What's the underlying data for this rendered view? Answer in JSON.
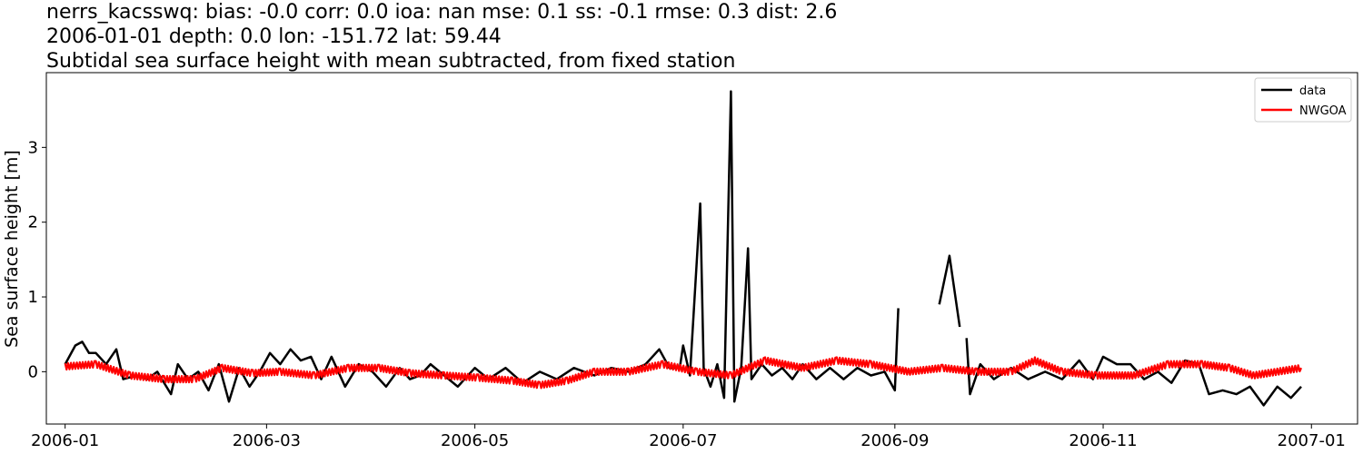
{
  "header": {
    "line1": "nerrs_kacsswq: bias: -0.0  corr: 0.0  ioa: nan  mse: 0.1  ss: -0.1  rmse: 0.3  dist: 2.6",
    "line2": "2006-01-01 depth: 0.0 lon: -151.72 lat: 59.44",
    "line3": "Subtidal sea surface height with mean subtracted, from fixed station"
  },
  "chart_data": {
    "type": "line",
    "xlabel": "",
    "ylabel": "Sea surface height [m]",
    "xlim": [
      "2006-01-01",
      "2006-12-31"
    ],
    "ylim": [
      -0.7,
      4.0
    ],
    "x_tick_labels": [
      "2006-01",
      "2006-03",
      "2006-05",
      "2006-07",
      "2006-09",
      "2006-11",
      "2007-01"
    ],
    "y_tick_labels": [
      "0",
      "1",
      "2",
      "3"
    ],
    "y_ticks": [
      0,
      1,
      2,
      3
    ],
    "grid": false,
    "legend_position": "upper-right",
    "series": [
      {
        "name": "data",
        "color": "#000000",
        "segments": [
          [
            [
              "2006-01-01",
              0.1
            ],
            [
              "2006-01-04",
              0.35
            ],
            [
              "2006-01-06",
              0.4
            ],
            [
              "2006-01-08",
              0.25
            ],
            [
              "2006-01-10",
              0.25
            ],
            [
              "2006-01-13",
              0.1
            ],
            [
              "2006-01-16",
              0.3
            ],
            [
              "2006-01-18",
              -0.1
            ],
            [
              "2006-01-22",
              -0.05
            ],
            [
              "2006-01-25",
              -0.1
            ],
            [
              "2006-01-28",
              0.0
            ],
            [
              "2006-02-01",
              -0.3
            ],
            [
              "2006-02-03",
              0.1
            ],
            [
              "2006-02-06",
              -0.1
            ],
            [
              "2006-02-09",
              0.0
            ],
            [
              "2006-02-12",
              -0.25
            ],
            [
              "2006-02-15",
              0.1
            ],
            [
              "2006-02-18",
              -0.4
            ],
            [
              "2006-02-21",
              0.05
            ],
            [
              "2006-02-24",
              -0.2
            ],
            [
              "2006-02-27",
              0.0
            ],
            [
              "2006-03-02",
              0.25
            ],
            [
              "2006-03-05",
              0.1
            ],
            [
              "2006-03-08",
              0.3
            ],
            [
              "2006-03-11",
              0.15
            ],
            [
              "2006-03-14",
              0.2
            ],
            [
              "2006-03-17",
              -0.1
            ],
            [
              "2006-03-20",
              0.2
            ],
            [
              "2006-03-24",
              -0.2
            ],
            [
              "2006-03-28",
              0.1
            ],
            [
              "2006-04-01",
              0.0
            ],
            [
              "2006-04-05",
              -0.2
            ],
            [
              "2006-04-09",
              0.05
            ],
            [
              "2006-04-12",
              -0.1
            ],
            [
              "2006-04-15",
              -0.05
            ],
            [
              "2006-04-18",
              0.1
            ],
            [
              "2006-04-22",
              -0.05
            ],
            [
              "2006-04-26",
              -0.2
            ],
            [
              "2006-05-01",
              0.05
            ],
            [
              "2006-05-05",
              -0.1
            ],
            [
              "2006-05-10",
              0.05
            ],
            [
              "2006-05-15",
              -0.15
            ],
            [
              "2006-05-20",
              0.0
            ],
            [
              "2006-05-25",
              -0.1
            ],
            [
              "2006-05-30",
              0.05
            ],
            [
              "2006-06-05",
              -0.05
            ],
            [
              "2006-06-10",
              0.05
            ],
            [
              "2006-06-15",
              0.0
            ],
            [
              "2006-06-20",
              0.1
            ],
            [
              "2006-06-24",
              0.3
            ],
            [
              "2006-06-27",
              0.05
            ],
            [
              "2006-06-30",
              0.05
            ],
            [
              "2006-07-01",
              0.35
            ],
            [
              "2006-07-03",
              -0.05
            ],
            [
              "2006-07-06",
              2.25
            ],
            [
              "2006-07-07",
              0.05
            ],
            [
              "2006-07-09",
              -0.2
            ],
            [
              "2006-07-11",
              0.1
            ],
            [
              "2006-07-13",
              -0.35
            ],
            [
              "2006-07-15",
              3.75
            ],
            [
              "2006-07-16",
              -0.4
            ],
            [
              "2006-07-18",
              0.05
            ],
            [
              "2006-07-20",
              1.65
            ],
            [
              "2006-07-21",
              -0.1
            ],
            [
              "2006-07-24",
              0.1
            ],
            [
              "2006-07-27",
              -0.05
            ],
            [
              "2006-07-30",
              0.05
            ],
            [
              "2006-08-02",
              -0.1
            ],
            [
              "2006-08-05",
              0.1
            ],
            [
              "2006-08-09",
              -0.1
            ],
            [
              "2006-08-13",
              0.05
            ],
            [
              "2006-08-17",
              -0.1
            ],
            [
              "2006-08-21",
              0.05
            ],
            [
              "2006-08-25",
              -0.05
            ],
            [
              "2006-08-29",
              0.0
            ],
            [
              "2006-09-01",
              -0.25
            ],
            [
              "2006-09-02",
              0.85
            ]
          ],
          [
            [
              "2006-09-14",
              0.9
            ],
            [
              "2006-09-17",
              1.55
            ],
            [
              "2006-09-20",
              0.6
            ]
          ],
          [
            [
              "2006-09-22",
              0.45
            ],
            [
              "2006-09-23",
              -0.3
            ],
            [
              "2006-09-26",
              0.1
            ],
            [
              "2006-09-30",
              -0.1
            ],
            [
              "2006-10-05",
              0.05
            ],
            [
              "2006-10-10",
              -0.1
            ],
            [
              "2006-10-15",
              0.0
            ],
            [
              "2006-10-20",
              -0.1
            ],
            [
              "2006-10-25",
              0.15
            ],
            [
              "2006-10-29",
              -0.1
            ],
            [
              "2006-11-01",
              0.2
            ],
            [
              "2006-11-05",
              0.1
            ],
            [
              "2006-11-09",
              0.1
            ],
            [
              "2006-11-13",
              -0.1
            ],
            [
              "2006-11-17",
              0.0
            ],
            [
              "2006-11-21",
              -0.15
            ],
            [
              "2006-11-25",
              0.15
            ],
            [
              "2006-11-29",
              0.1
            ],
            [
              "2006-12-02",
              -0.3
            ],
            [
              "2006-12-06",
              -0.25
            ],
            [
              "2006-12-10",
              -0.3
            ],
            [
              "2006-12-14",
              -0.2
            ],
            [
              "2006-12-18",
              -0.45
            ],
            [
              "2006-12-22",
              -0.2
            ],
            [
              "2006-12-26",
              -0.35
            ],
            [
              "2006-12-29",
              -0.2
            ]
          ]
        ]
      },
      {
        "name": "NWGOA",
        "color": "#ff0000",
        "segments": [
          [
            [
              "2006-01-01",
              0.07
            ],
            [
              "2006-01-10",
              0.1
            ],
            [
              "2006-01-20",
              -0.05
            ],
            [
              "2006-01-30",
              -0.1
            ],
            [
              "2006-02-08",
              -0.1
            ],
            [
              "2006-02-16",
              0.05
            ],
            [
              "2006-02-25",
              -0.02
            ],
            [
              "2006-03-05",
              0.0
            ],
            [
              "2006-03-15",
              -0.05
            ],
            [
              "2006-03-25",
              0.05
            ],
            [
              "2006-04-03",
              0.05
            ],
            [
              "2006-04-12",
              -0.02
            ],
            [
              "2006-04-22",
              -0.05
            ],
            [
              "2006-05-02",
              -0.08
            ],
            [
              "2006-05-12",
              -0.12
            ],
            [
              "2006-05-20",
              -0.18
            ],
            [
              "2006-05-28",
              -0.12
            ],
            [
              "2006-06-05",
              0.0
            ],
            [
              "2006-06-15",
              0.0
            ],
            [
              "2006-06-25",
              0.1
            ],
            [
              "2006-07-05",
              0.0
            ],
            [
              "2006-07-15",
              -0.05
            ],
            [
              "2006-07-25",
              0.15
            ],
            [
              "2006-08-05",
              0.05
            ],
            [
              "2006-08-15",
              0.15
            ],
            [
              "2006-08-25",
              0.1
            ],
            [
              "2006-09-05",
              0.0
            ],
            [
              "2006-09-15",
              0.05
            ],
            [
              "2006-09-25",
              0.0
            ],
            [
              "2006-10-05",
              0.0
            ],
            [
              "2006-10-12",
              0.15
            ],
            [
              "2006-10-20",
              0.0
            ],
            [
              "2006-10-30",
              -0.05
            ],
            [
              "2006-11-10",
              -0.05
            ],
            [
              "2006-11-20",
              0.1
            ],
            [
              "2006-11-30",
              0.1
            ],
            [
              "2006-12-08",
              0.05
            ],
            [
              "2006-12-15",
              -0.05
            ],
            [
              "2006-12-22",
              0.0
            ],
            [
              "2006-12-29",
              0.05
            ]
          ]
        ]
      }
    ]
  }
}
